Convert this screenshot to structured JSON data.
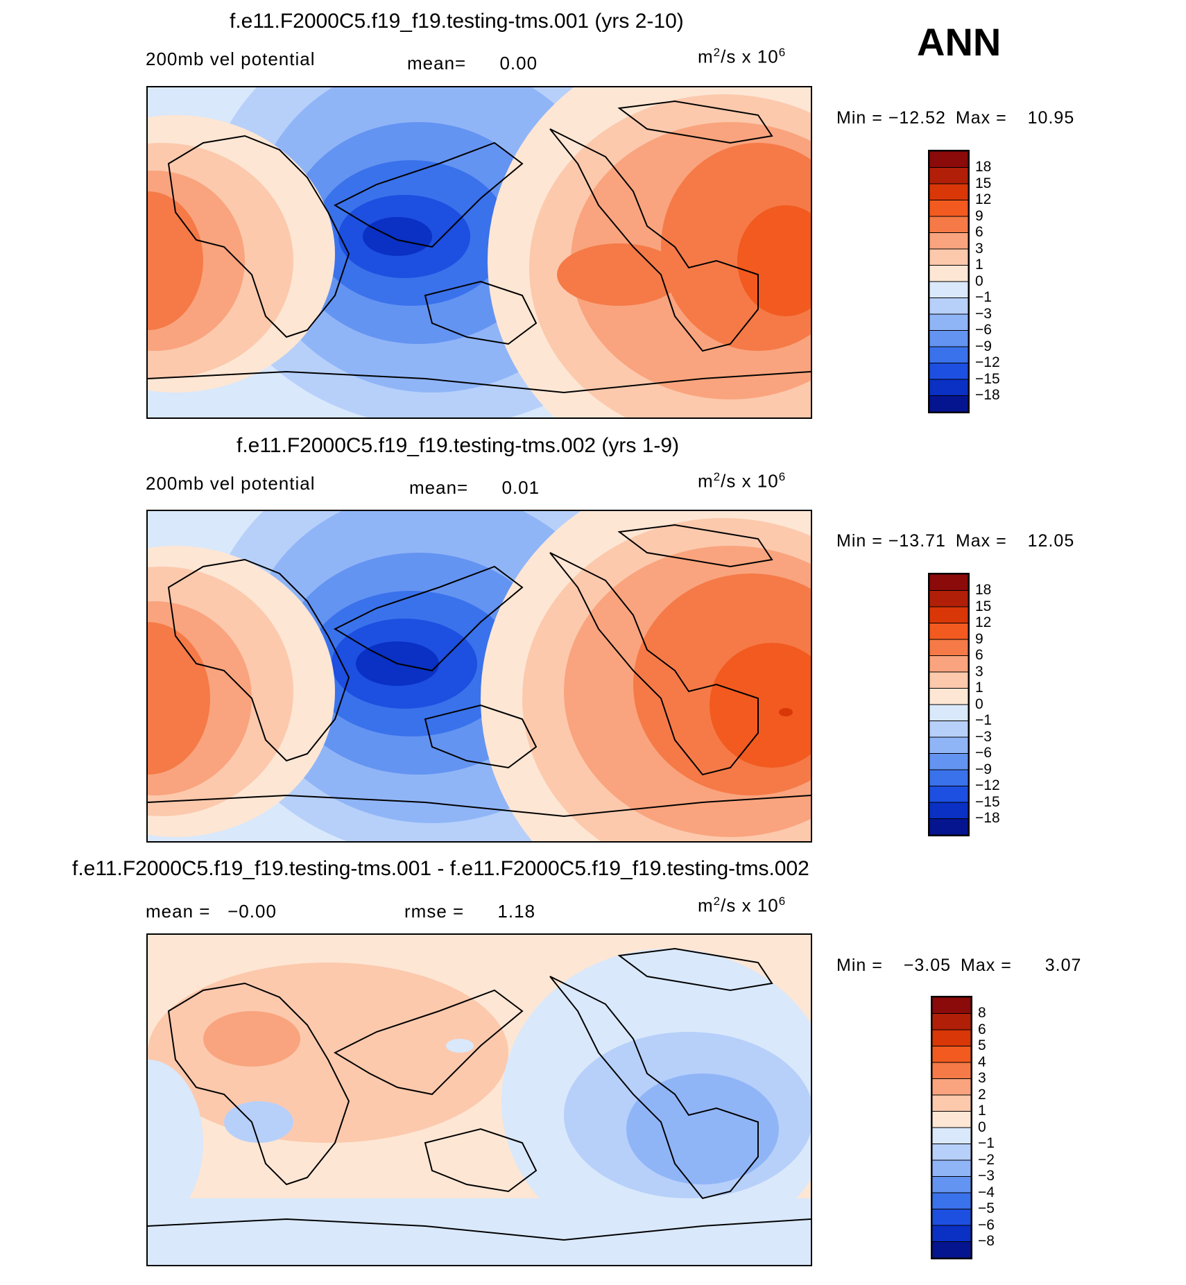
{
  "header": {
    "season": "ANN"
  },
  "panels": [
    {
      "title": "f.e11.F2000C5.f19_f19.testing-tms.001 (yrs 2-10)",
      "left_label": "200mb vel potential",
      "mid_label": "mean=",
      "mid_value": "0.00",
      "units_base": "m",
      "units_exp1": "2",
      "units_mid": "/s x 10",
      "units_exp2": "6",
      "min_label": "Min =",
      "min_value": "−12.52",
      "max_label": "Max =",
      "max_value": "10.95",
      "colorbar_labels": [
        "18",
        "15",
        "12",
        "9",
        "6",
        "3",
        "1",
        "0",
        "−1",
        "−3",
        "−6",
        "−9",
        "−12",
        "−15",
        "−18"
      ]
    },
    {
      "title": "f.e11.F2000C5.f19_f19.testing-tms.002 (yrs 1-9)",
      "left_label": "200mb vel potential",
      "mid_label": "mean=",
      "mid_value": "0.01",
      "units_base": "m",
      "units_exp1": "2",
      "units_mid": "/s x 10",
      "units_exp2": "6",
      "min_label": "Min =",
      "min_value": "−13.71",
      "max_label": "Max =",
      "max_value": "12.05",
      "colorbar_labels": [
        "18",
        "15",
        "12",
        "9",
        "6",
        "3",
        "1",
        "0",
        "−1",
        "−3",
        "−6",
        "−9",
        "−12",
        "−15",
        "−18"
      ]
    },
    {
      "title": "f.e11.F2000C5.f19_f19.testing-tms.001 - f.e11.F2000C5.f19_f19.testing-tms.002",
      "left_label": "mean =   −0.00",
      "mid_label": "rmse =",
      "mid_value": "1.18",
      "units_base": "m",
      "units_exp1": "2",
      "units_mid": "/s x 10",
      "units_exp2": "6",
      "min_label": "Min =",
      "min_value": "−3.05",
      "max_label": "Max =",
      "max_value": "3.07",
      "colorbar_labels": [
        "8",
        "6",
        "5",
        "4",
        "3",
        "2",
        "1",
        "0",
        "−1",
        "−2",
        "−3",
        "−4",
        "−5",
        "−6",
        "−8"
      ]
    }
  ],
  "colors": {
    "scale": [
      "#8b0a0a",
      "#b21f08",
      "#d93708",
      "#f25a1f",
      "#f57a47",
      "#f9a47e",
      "#fcc9ad",
      "#fde6d4",
      "#d9e8fb",
      "#b7d0fa",
      "#90b5f7",
      "#6494f1",
      "#3a72ec",
      "#1d4fe0",
      "#0a30c4",
      "#05148f"
    ],
    "land_outline": "#000000"
  }
}
